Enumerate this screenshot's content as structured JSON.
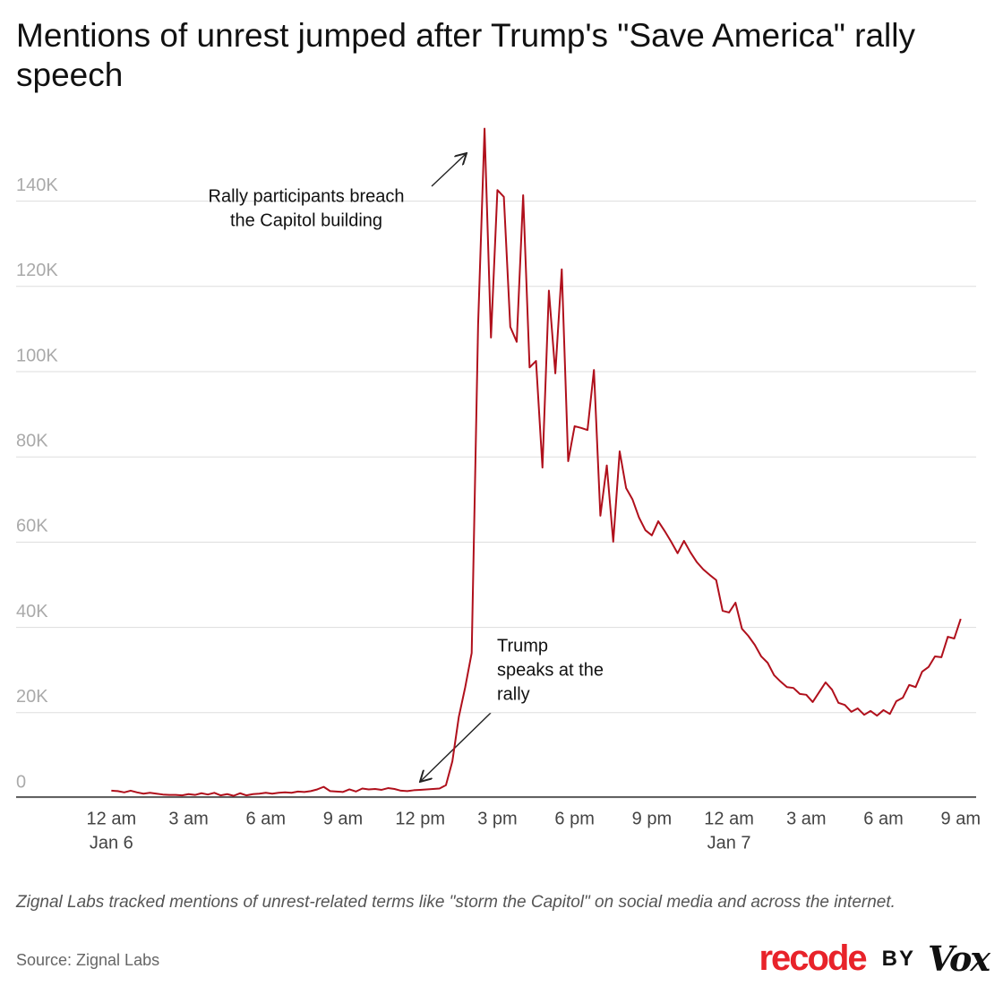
{
  "chart_data": {
    "type": "line",
    "title": "Mentions of unrest jumped after Trump's \"Save America\" rally speech",
    "note": "Zignal Labs tracked mentions of unrest-related terms like \"storm the Capitol\" on social media and across the internet.",
    "source": "Source: Zignal Labs",
    "brand": {
      "name": "recode",
      "by": "BY",
      "partner": "Vox"
    },
    "x": [
      0,
      0.25,
      0.5,
      0.75,
      1,
      1.25,
      1.5,
      1.75,
      2,
      2.25,
      2.5,
      2.75,
      3,
      3.25,
      3.5,
      3.75,
      4,
      4.25,
      4.5,
      4.75,
      5,
      5.25,
      5.5,
      5.75,
      6,
      6.25,
      6.5,
      6.75,
      7,
      7.25,
      7.5,
      7.75,
      8,
      8.25,
      8.5,
      8.75,
      9,
      9.25,
      9.5,
      9.75,
      10,
      10.25,
      10.5,
      10.75,
      11,
      11.25,
      11.5,
      11.75,
      12,
      12.25,
      12.5,
      12.75,
      13,
      13.25,
      13.5,
      13.75,
      14,
      14.25,
      14.5,
      14.75,
      15,
      15.25,
      15.5,
      15.75,
      16,
      16.25,
      16.5,
      16.75,
      17,
      17.25,
      17.5,
      17.75,
      18,
      18.25,
      18.5,
      18.75,
      19,
      19.25,
      19.5,
      19.75,
      20,
      20.25,
      20.5,
      20.75,
      21,
      21.25,
      21.5,
      21.75,
      22,
      22.25,
      22.5,
      22.75,
      23,
      23.25,
      23.5,
      23.75,
      24,
      24.25,
      24.5,
      24.75,
      25,
      25.25,
      25.5,
      25.75,
      26,
      26.25,
      26.5,
      26.75,
      27,
      27.25,
      27.5,
      27.75,
      28,
      28.25,
      28.5,
      28.75,
      29,
      29.25,
      29.5,
      29.75,
      30,
      30.25,
      30.5,
      30.75,
      31,
      31.25,
      31.5,
      31.75,
      32,
      32.25,
      32.5,
      32.75,
      33
    ],
    "series": [
      {
        "name": "Mentions",
        "color": "#b0101c",
        "values": [
          1700,
          1600,
          1300,
          1700,
          1300,
          1000,
          1200,
          1000,
          800,
          700,
          700,
          600,
          900,
          700,
          1100,
          800,
          1200,
          600,
          900,
          500,
          1100,
          600,
          900,
          1000,
          1200,
          1000,
          1200,
          1300,
          1200,
          1500,
          1400,
          1600,
          2000,
          2600,
          1600,
          1500,
          1400,
          2000,
          1500,
          2200,
          2000,
          2100,
          1900,
          2300,
          2100,
          1700,
          1600,
          1800,
          1900,
          2000,
          2100,
          2200,
          3000,
          8600,
          19000,
          26000,
          34000,
          111000,
          157000,
          108000,
          142600,
          141000,
          110500,
          107000,
          141400,
          101000,
          102500,
          77500,
          119000,
          99600,
          124000,
          79000,
          87200,
          86800,
          86300,
          100400,
          66200,
          78000,
          60100,
          81300,
          72700,
          70000,
          65800,
          62800,
          61600,
          64900,
          62600,
          60100,
          57400,
          60300,
          57600,
          55300,
          53600,
          52300,
          51100,
          43900,
          43500,
          45800,
          39700,
          38000,
          35900,
          33200,
          31700,
          28800,
          27300,
          26000,
          25800,
          24400,
          24200,
          22500,
          24800,
          27100,
          25400,
          22300,
          21800,
          20200,
          21000,
          19500,
          20400,
          19300,
          20600,
          19700,
          22700,
          23500,
          26500,
          26000,
          29600,
          30700,
          33200,
          33000,
          37800,
          37400,
          42000
        ]
      }
    ],
    "xlim": [
      -3.7,
      33.6
    ],
    "xticks": [
      {
        "value": 0,
        "label": "12 am"
      },
      {
        "value": 3,
        "label": "3 am"
      },
      {
        "value": 6,
        "label": "6 am"
      },
      {
        "value": 9,
        "label": "9 am"
      },
      {
        "value": 12,
        "label": "12 pm"
      },
      {
        "value": 15,
        "label": "3 pm"
      },
      {
        "value": 18,
        "label": "6 pm"
      },
      {
        "value": 21,
        "label": "9 pm"
      },
      {
        "value": 24,
        "label": "12 am"
      },
      {
        "value": 27,
        "label": "3 am"
      },
      {
        "value": 30,
        "label": "6 am"
      },
      {
        "value": 33,
        "label": "9 am"
      }
    ],
    "date_labels": [
      {
        "value": 0,
        "label": "Jan 6"
      },
      {
        "value": 24,
        "label": "Jan 7"
      }
    ],
    "ylim": [
      0,
      160000
    ],
    "yticks": [
      0,
      {
        "value": 20000,
        "label": "20K"
      },
      {
        "value": 40000,
        "label": "40K"
      },
      {
        "value": 60000,
        "label": "60K"
      },
      {
        "value": 80000,
        "label": "80K"
      },
      {
        "value": 100000,
        "label": "100K"
      },
      {
        "value": 120000,
        "label": "120K"
      },
      {
        "value": 140000,
        "label": "140K"
      }
    ],
    "grid": true,
    "annotations": [
      {
        "lines": [
          "Rally participants breach",
          "the Capitol building"
        ]
      },
      {
        "lines": [
          "Trump",
          "speaks at the",
          "rally"
        ]
      }
    ]
  }
}
